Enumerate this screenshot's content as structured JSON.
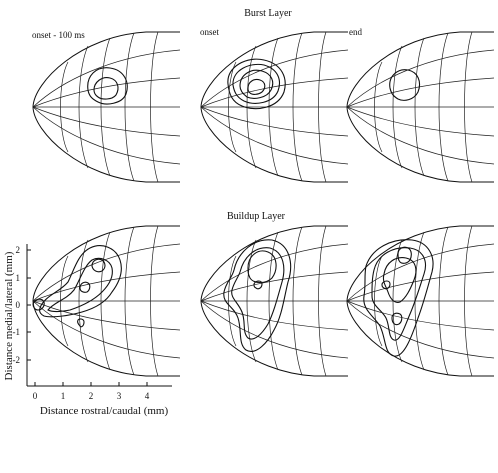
{
  "figure": {
    "row_titles": [
      "Burst Layer",
      "Buildup Layer"
    ],
    "panel_labels": [
      "onset - 100 ms",
      "onset",
      "end"
    ],
    "y_axis_label": "Distance medial/lateral (mm)",
    "x_axis_label": "Distance rostral/caudal (mm)",
    "y_ticks": [
      "2",
      "1",
      "0",
      "-1",
      "-2"
    ],
    "x_ticks": [
      "0",
      "1",
      "2",
      "3",
      "4"
    ]
  }
}
